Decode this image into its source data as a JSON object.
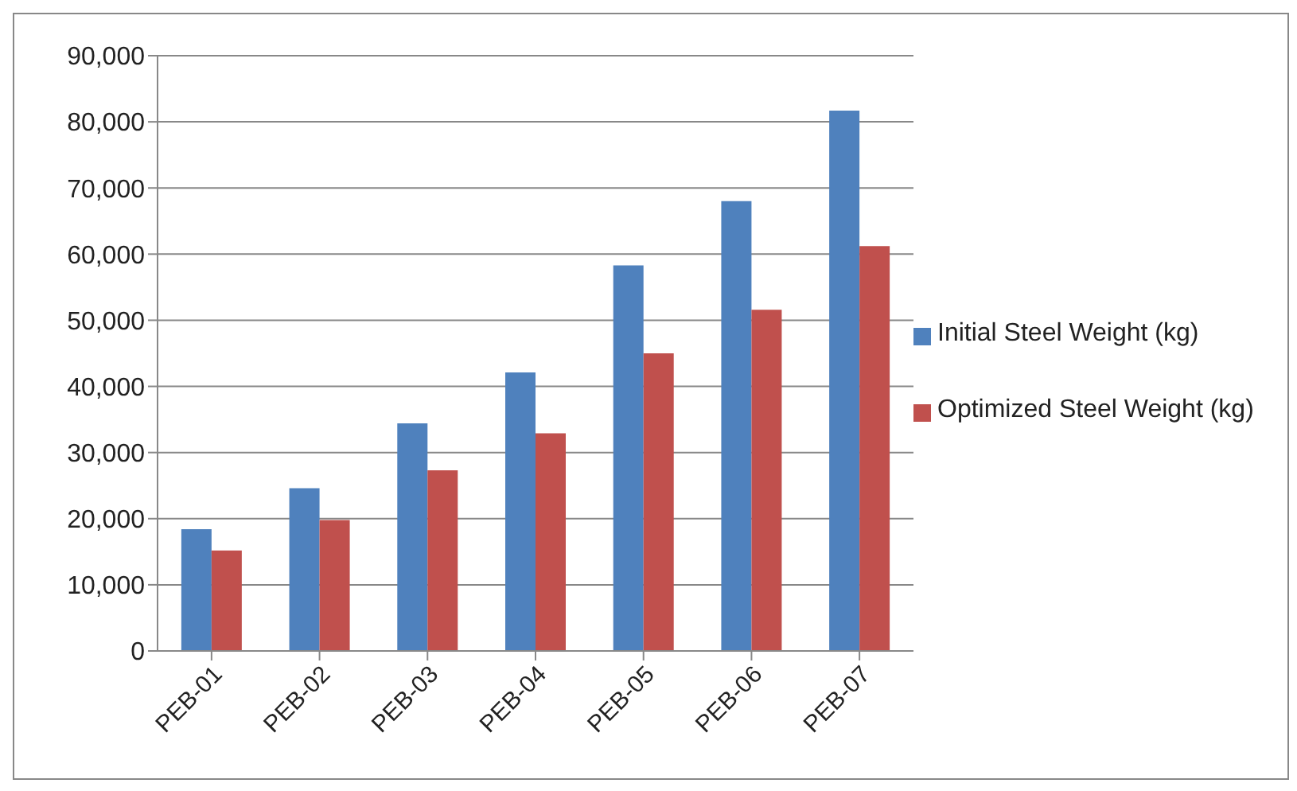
{
  "chart_data": {
    "type": "bar",
    "categories": [
      "PEB-01",
      "PEB-02",
      "PEB-03",
      "PEB-04",
      "PEB-05",
      "PEB-06",
      "PEB-07"
    ],
    "series": [
      {
        "name": "Initial Steel Weight (kg)",
        "color": "#4f81bd",
        "values": [
          18400,
          24600,
          34400,
          42100,
          58300,
          68000,
          81700
        ]
      },
      {
        "name": "Optimized Steel Weight (kg)",
        "color": "#c0504d",
        "values": [
          15200,
          19800,
          27300,
          32900,
          45000,
          51600,
          61200
        ]
      }
    ],
    "ylim": [
      0,
      90000
    ],
    "yticks": [
      0,
      {
        "value": 10000,
        "label": "10,000"
      },
      {
        "value": 20000,
        "label": "20,000"
      },
      {
        "value": 30000,
        "label": "30,000"
      },
      {
        "value": 40000,
        "label": "40,000"
      },
      {
        "value": 50000,
        "label": "50,000"
      },
      {
        "value": 60000,
        "label": "60,000"
      },
      {
        "value": 70000,
        "label": "70,000"
      },
      {
        "value": 80000,
        "label": "80,000"
      },
      {
        "value": 90000,
        "label": "90,000"
      }
    ],
    "grid": "y",
    "legend": "right"
  }
}
